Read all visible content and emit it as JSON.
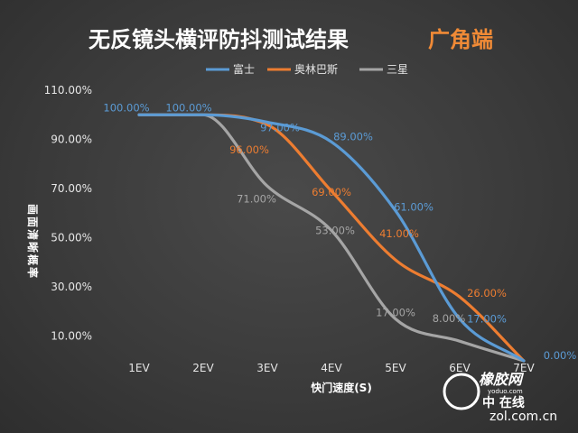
{
  "header": {
    "title": "无反镜头横评防抖测试结果",
    "subtitle": "广角端"
  },
  "chart_data": {
    "type": "line",
    "title": "无反镜头横评防抖测试结果",
    "subtitle": "广角端",
    "xlabel": "快门速度(S)",
    "ylabel": "画面清晰概率",
    "categories": [
      "1EV",
      "2EV",
      "3EV",
      "4EV",
      "5EV",
      "6EV",
      "7EV"
    ],
    "y_ticks": [
      "10.00%",
      "30.00%",
      "50.00%",
      "70.00%",
      "90.00%",
      "110.00%"
    ],
    "y_tick_values": [
      10,
      30,
      50,
      70,
      90,
      110
    ],
    "ylim": [
      0,
      110
    ],
    "grid": false,
    "legend_position": "top",
    "series": [
      {
        "name": "富士",
        "color": "#5b9bd5",
        "values": [
          100,
          100,
          97,
          89,
          61,
          17,
          0
        ],
        "labels": [
          "100.00%",
          "100.00%",
          "97.00%",
          "89.00%",
          "61.00%",
          "17.00%",
          "0.00%"
        ]
      },
      {
        "name": "奥林巴斯",
        "color": "#ed7d31",
        "values": [
          100,
          100,
          96,
          69,
          41,
          26,
          0
        ],
        "labels": [
          "",
          "",
          "96.00%",
          "69.00%",
          "41.00%",
          "26.00%",
          ""
        ]
      },
      {
        "name": "三星",
        "color": "#a5a5a5",
        "values": [
          100,
          100,
          71,
          53,
          17,
          8,
          0
        ],
        "labels": [
          "",
          "",
          "71.00%",
          "53.00%",
          "17.00%",
          "8.00%",
          ""
        ]
      }
    ]
  },
  "watermark": {
    "logo_text": "橡胶网",
    "logo_small": "yoduo.com",
    "logo_sub": "中  在线",
    "site": "zol.com.cn"
  }
}
